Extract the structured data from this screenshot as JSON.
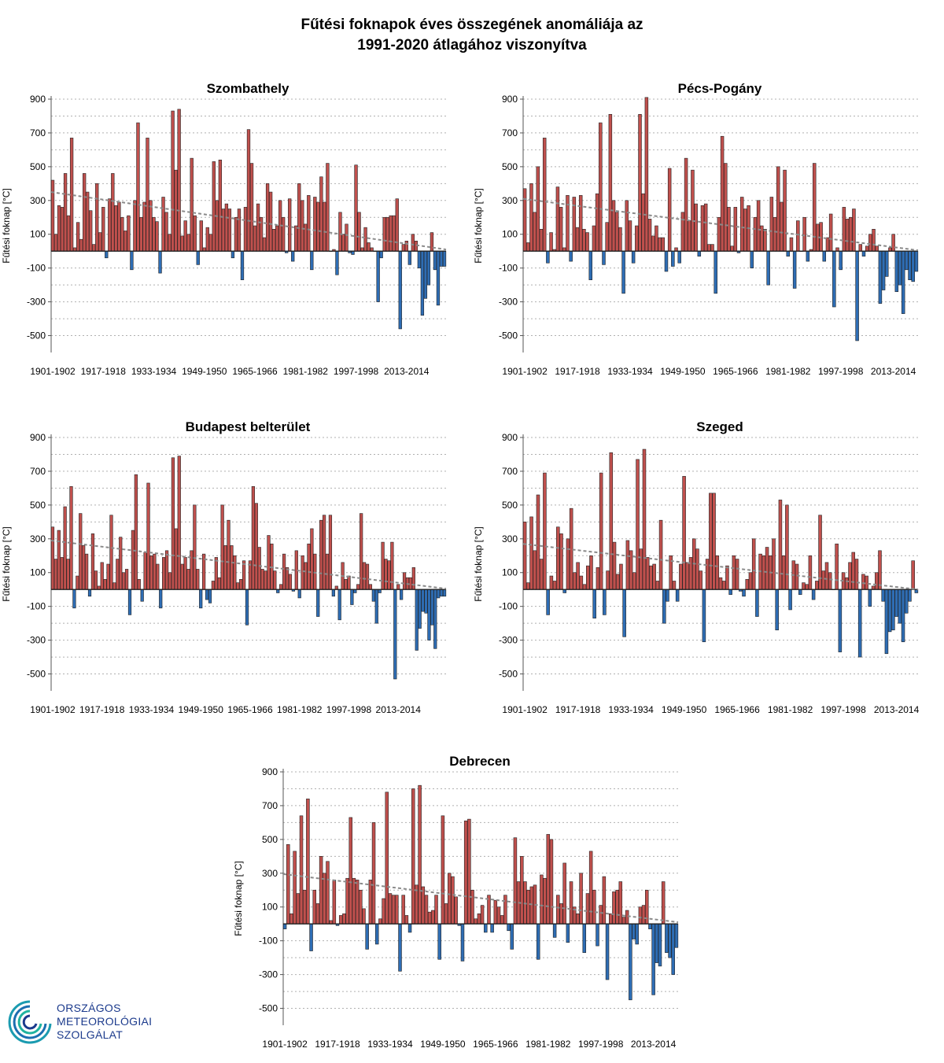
{
  "title_line1": "Fűtési foknapok éves összegének anomáliája az",
  "title_line2": "1991-2020 átlagához viszonyítva",
  "logo": {
    "line1": "ORSZÁGOS",
    "line2": "METEOROLÓGIAI",
    "line3": "SZOLGÁLAT",
    "icon": "swirl-logo-icon"
  },
  "colors": {
    "positive": "#c0504d",
    "negative": "#2e6db4",
    "trend": "#8a8a8a",
    "grid": "#b0b0b0",
    "logo": "#1b3a8c"
  },
  "chart_data": [
    {
      "type": "bar",
      "title": "Szombathely",
      "ylabel": "Fűtési foknap [°C]",
      "xlabel": "",
      "ylim": [
        -600,
        900
      ],
      "yticks": [
        900,
        700,
        500,
        300,
        100,
        -100,
        -300,
        -500
      ],
      "xtick_labels": [
        "1901-1902",
        "1917-1918",
        "1933-1934",
        "1949-1950",
        "1965-1966",
        "1981-1982",
        "1997-1998",
        "2013-2014"
      ],
      "grid": true,
      "trend_line": {
        "start": 350,
        "end": 10
      },
      "values": [
        420,
        100,
        270,
        260,
        460,
        210,
        670,
        20,
        170,
        70,
        460,
        350,
        240,
        40,
        400,
        110,
        260,
        -40,
        310,
        460,
        270,
        290,
        200,
        120,
        210,
        -110,
        300,
        760,
        200,
        290,
        670,
        300,
        200,
        175,
        -130,
        320,
        230,
        100,
        830,
        480,
        840,
        90,
        180,
        100,
        550,
        210,
        -80,
        180,
        20,
        140,
        100,
        530,
        300,
        540,
        250,
        280,
        250,
        -40,
        200,
        250,
        -170,
        260,
        720,
        520,
        150,
        280,
        200,
        80,
        400,
        350,
        130,
        150,
        300,
        200,
        -10,
        310,
        -60,
        150,
        400,
        300,
        160,
        330,
        -110,
        320,
        290,
        440,
        290,
        520,
        0,
        10,
        -140,
        230,
        100,
        160,
        -10,
        -20,
        510,
        230,
        20,
        140,
        50,
        20,
        0,
        -300,
        -40,
        200,
        200,
        210,
        210,
        310,
        -460,
        40,
        60,
        -80,
        100,
        60,
        -100,
        -380,
        -280,
        -200,
        110,
        -110,
        -320,
        -90,
        -90
      ]
    },
    {
      "type": "bar",
      "title": "Pécs-Pogány",
      "ylabel": "Fűtési foknap [°C]",
      "xlabel": "",
      "ylim": [
        -600,
        900
      ],
      "yticks": [
        900,
        700,
        500,
        300,
        100,
        -100,
        -300,
        -500
      ],
      "xtick_labels": [
        "1901-1902",
        "1917-1918",
        "1933-1934",
        "1949-1950",
        "1965-1966",
        "1981-1982",
        "1997-1998",
        "2013-2014"
      ],
      "grid": true,
      "trend_line": {
        "start": 310,
        "end": 5
      },
      "values": [
        370,
        50,
        400,
        230,
        500,
        130,
        670,
        -70,
        110,
        10,
        380,
        260,
        20,
        330,
        -60,
        320,
        140,
        330,
        130,
        110,
        -170,
        150,
        340,
        760,
        -80,
        170,
        810,
        300,
        230,
        140,
        -250,
        300,
        180,
        -70,
        150,
        810,
        340,
        910,
        190,
        90,
        150,
        80,
        80,
        -120,
        490,
        -90,
        20,
        -70,
        230,
        550,
        180,
        480,
        280,
        -30,
        270,
        280,
        40,
        40,
        -250,
        200,
        680,
        520,
        260,
        30,
        260,
        -10,
        320,
        250,
        270,
        -100,
        200,
        300,
        150,
        130,
        -200,
        320,
        200,
        500,
        290,
        480,
        -30,
        80,
        -220,
        180,
        0,
        200,
        -60,
        10,
        520,
        160,
        170,
        -60,
        80,
        220,
        -330,
        20,
        -110,
        260,
        190,
        200,
        250,
        -530,
        40,
        -30,
        30,
        100,
        130,
        30,
        -310,
        -230,
        -150,
        20,
        100,
        -240,
        -200,
        -370,
        -110,
        -170,
        -180,
        -120
      ]
    },
    {
      "type": "bar",
      "title": "Budapest belterület",
      "ylabel": "Fűtési foknap [°C]",
      "xlabel": "",
      "ylim": [
        -600,
        900
      ],
      "yticks": [
        900,
        700,
        500,
        300,
        100,
        -100,
        -300,
        -500
      ],
      "xtick_labels": [
        "1901-1902",
        "1917-1918",
        "1933-1934",
        "1949-1950",
        "1965-1966",
        "1981-1982",
        "1997-1998",
        "2013-2014"
      ],
      "grid": true,
      "trend_line": {
        "start": 290,
        "end": 5
      },
      "values": [
        370,
        180,
        350,
        190,
        490,
        180,
        610,
        -110,
        80,
        450,
        260,
        210,
        -40,
        330,
        110,
        20,
        160,
        60,
        150,
        440,
        40,
        180,
        310,
        100,
        120,
        -150,
        350,
        680,
        60,
        -70,
        220,
        630,
        200,
        210,
        150,
        -110,
        190,
        230,
        100,
        780,
        360,
        790,
        150,
        190,
        120,
        230,
        500,
        120,
        -110,
        210,
        -60,
        -80,
        50,
        190,
        70,
        500,
        260,
        410,
        260,
        200,
        40,
        60,
        170,
        -210,
        170,
        610,
        510,
        250,
        120,
        110,
        320,
        270,
        110,
        -20,
        30,
        210,
        130,
        90,
        -10,
        230,
        -50,
        200,
        160,
        270,
        360,
        210,
        -160,
        410,
        440,
        210,
        440,
        -40,
        20,
        -180,
        160,
        60,
        80,
        -90,
        -20,
        30,
        450,
        160,
        150,
        30,
        -70,
        -200,
        -20,
        280,
        180,
        170,
        280,
        -530,
        30,
        -60,
        100,
        70,
        70,
        130,
        -360,
        -230,
        -130,
        -140,
        -300,
        -210,
        -350,
        -50,
        -40,
        -40
      ]
    },
    {
      "type": "bar",
      "title": "Szeged",
      "ylabel": "Fűtési foknap [°C]",
      "xlabel": "",
      "ylim": [
        -600,
        900
      ],
      "yticks": [
        900,
        700,
        500,
        300,
        100,
        -100,
        -300,
        -500
      ],
      "xtick_labels": [
        "1901-1902",
        "1917-1918",
        "1933-1934",
        "1949-1950",
        "1965-1966",
        "1981-1982",
        "1997-1998",
        "2013-2014"
      ],
      "grid": true,
      "trend_line": {
        "start": 270,
        "end": 0
      },
      "values": [
        400,
        40,
        430,
        230,
        560,
        180,
        690,
        -150,
        80,
        50,
        370,
        330,
        -20,
        300,
        480,
        100,
        160,
        80,
        30,
        140,
        200,
        -170,
        130,
        690,
        -150,
        110,
        810,
        280,
        90,
        150,
        -280,
        290,
        230,
        100,
        770,
        240,
        830,
        190,
        140,
        150,
        50,
        410,
        -200,
        -70,
        200,
        50,
        -70,
        150,
        670,
        160,
        190,
        300,
        240,
        110,
        -310,
        180,
        570,
        570,
        200,
        70,
        50,
        140,
        -30,
        200,
        180,
        -10,
        -40,
        60,
        100,
        300,
        -160,
        210,
        200,
        250,
        200,
        300,
        -240,
        530,
        200,
        500,
        -120,
        170,
        150,
        -30,
        40,
        30,
        200,
        -60,
        50,
        440,
        110,
        160,
        100,
        0,
        270,
        -370,
        100,
        70,
        160,
        220,
        180,
        -400,
        90,
        80,
        -100,
        20,
        100,
        230,
        -70,
        -380,
        -250,
        -240,
        -160,
        -200,
        -310,
        -140,
        -70,
        170,
        -20
      ]
    },
    {
      "type": "bar",
      "title": "Debrecen",
      "ylabel": "Fűtési foknap [°C]",
      "xlabel": "",
      "ylim": [
        -600,
        900
      ],
      "yticks": [
        900,
        700,
        500,
        300,
        100,
        -100,
        -300,
        -500
      ],
      "xtick_labels": [
        "1901-1902",
        "1917-1918",
        "1933-1934",
        "1949-1950",
        "1965-1966",
        "1981-1982",
        "1997-1998",
        "2013-2014"
      ],
      "grid": true,
      "trend_line": {
        "start": 295,
        "end": 10
      },
      "values": [
        -30,
        470,
        60,
        430,
        180,
        640,
        200,
        740,
        -160,
        200,
        120,
        400,
        300,
        370,
        20,
        260,
        -10,
        50,
        60,
        270,
        630,
        270,
        260,
        200,
        90,
        -150,
        260,
        600,
        -120,
        30,
        150,
        780,
        180,
        170,
        170,
        -280,
        170,
        50,
        -50,
        800,
        230,
        820,
        220,
        170,
        70,
        80,
        170,
        -210,
        640,
        120,
        300,
        280,
        160,
        -10,
        -220,
        610,
        620,
        200,
        30,
        60,
        110,
        -50,
        170,
        -50,
        140,
        100,
        50,
        170,
        -40,
        -150,
        510,
        250,
        400,
        250,
        200,
        220,
        230,
        -210,
        290,
        270,
        530,
        500,
        -80,
        170,
        120,
        360,
        -110,
        250,
        100,
        60,
        300,
        -170,
        180,
        430,
        200,
        -130,
        110,
        280,
        -330,
        60,
        190,
        200,
        250,
        40,
        80,
        -450,
        -90,
        -120,
        100,
        110,
        200,
        -30,
        -420,
        -230,
        -250,
        250,
        -170,
        -200,
        -300,
        -140
      ]
    }
  ]
}
